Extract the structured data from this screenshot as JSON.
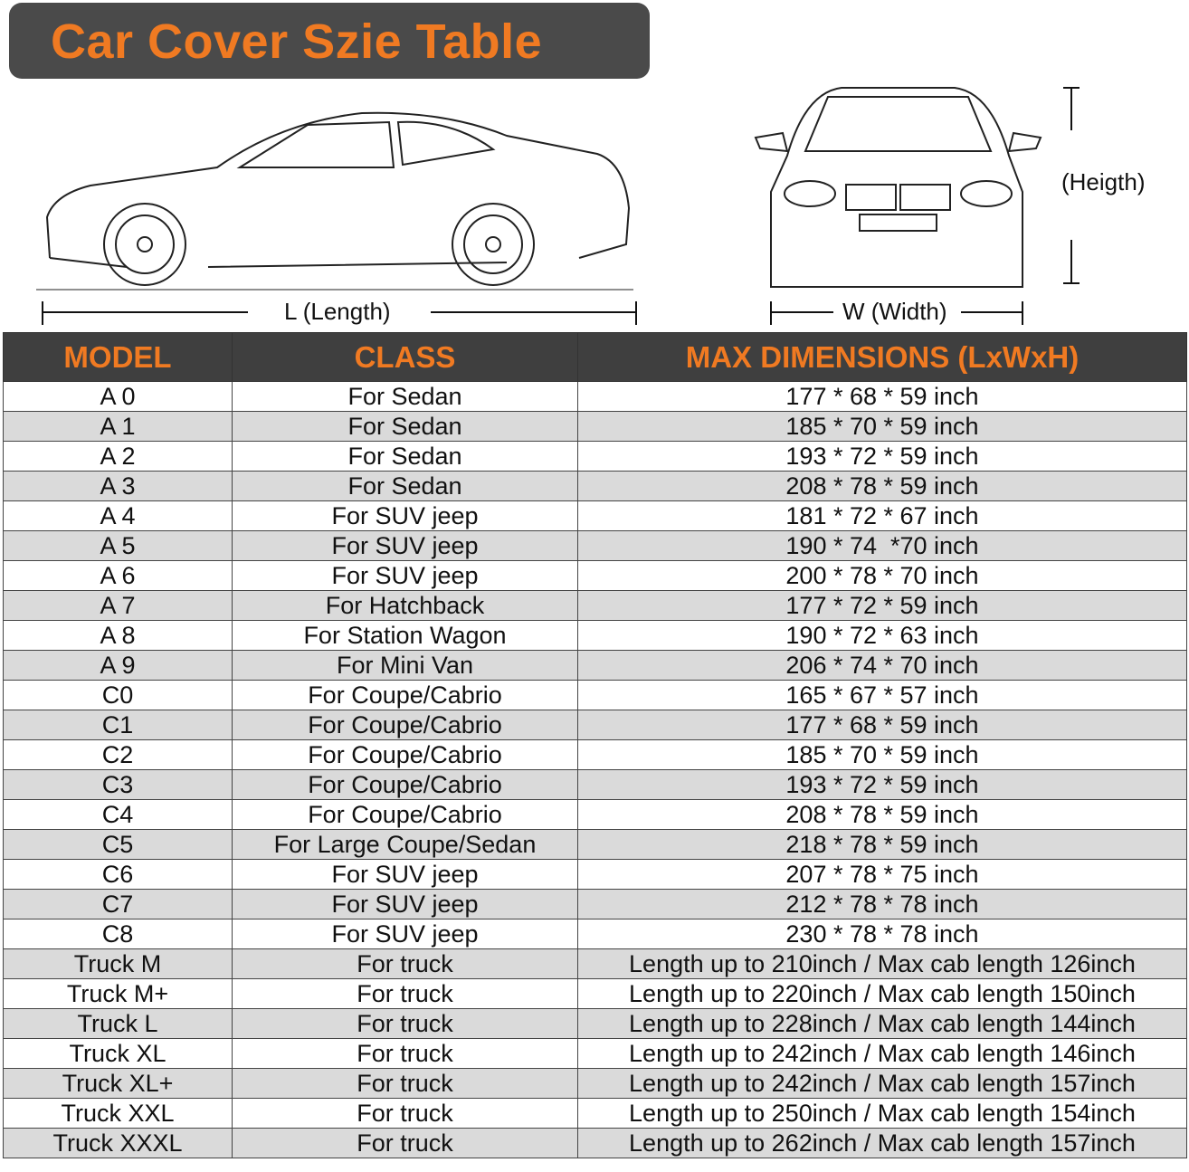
{
  "title": "Car Cover Szie Table",
  "labels": {
    "length": "L (Length)",
    "width": "W (Width)",
    "height": "(Heigth)"
  },
  "colors": {
    "accent": "#f07a22",
    "header_bg": "#3f3f3f",
    "alt_row": "#dadada"
  },
  "table": {
    "headers": [
      "MODEL",
      "CLASS",
      "MAX DIMENSIONS (LxWxH)"
    ],
    "rows": [
      [
        "A 0",
        "For Sedan",
        "177 * 68 * 59 inch"
      ],
      [
        "A 1",
        "For Sedan",
        "185 * 70 * 59 inch"
      ],
      [
        "A 2",
        "For Sedan",
        "193 * 72 * 59 inch"
      ],
      [
        "A 3",
        "For Sedan",
        "208 * 78 * 59 inch"
      ],
      [
        "A 4",
        "For SUV jeep",
        "181 * 72 * 67 inch"
      ],
      [
        "A 5",
        "For SUV jeep",
        "190 * 74  *70 inch"
      ],
      [
        "A 6",
        "For SUV jeep",
        "200 * 78 * 70 inch"
      ],
      [
        "A 7",
        "For Hatchback",
        "177 * 72 * 59 inch"
      ],
      [
        "A 8",
        "For Station Wagon",
        "190 * 72 * 63 inch"
      ],
      [
        "A 9",
        "For Mini Van",
        "206 * 74 * 70 inch"
      ],
      [
        "C0",
        "For Coupe/Cabrio",
        "165 * 67 * 57 inch"
      ],
      [
        "C1",
        "For Coupe/Cabrio",
        "177 * 68 * 59 inch"
      ],
      [
        "C2",
        "For Coupe/Cabrio",
        "185 * 70 * 59 inch"
      ],
      [
        "C3",
        "For Coupe/Cabrio",
        "193 * 72 * 59 inch"
      ],
      [
        "C4",
        "For Coupe/Cabrio",
        "208 * 78 * 59 inch"
      ],
      [
        "C5",
        "For Large Coupe/Sedan",
        "218 * 78 * 59 inch"
      ],
      [
        "C6",
        "For SUV jeep",
        "207 * 78 * 75 inch"
      ],
      [
        "C7",
        "For SUV jeep",
        "212 * 78 * 78 inch"
      ],
      [
        "C8",
        "For SUV jeep",
        "230 * 78 * 78 inch"
      ],
      [
        "Truck M",
        "For truck",
        "Length up to 210inch / Max cab length 126inch"
      ],
      [
        "Truck M+",
        "For truck",
        "Length up to 220inch / Max cab length 150inch"
      ],
      [
        "Truck L",
        "For truck",
        "Length up to 228inch / Max cab length 144inch"
      ],
      [
        "Truck XL",
        "For truck",
        "Length up to 242inch / Max cab length 146inch"
      ],
      [
        "Truck XL+",
        "For truck",
        "Length up to 242inch / Max cab length 157inch"
      ],
      [
        "Truck XXL",
        "For truck",
        "Length up to 250inch / Max cab length 154inch"
      ],
      [
        "Truck XXXL",
        "For truck",
        "Length up to 262inch / Max cab length 157inch"
      ]
    ]
  }
}
